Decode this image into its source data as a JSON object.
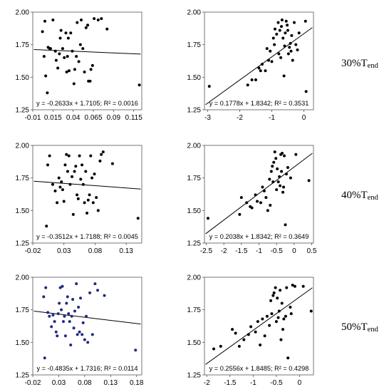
{
  "row_labels": [
    {
      "main": "30%T",
      "sub": "end"
    },
    {
      "main": "40%T",
      "sub": "end"
    },
    {
      "main": "50%T",
      "sub": "end"
    }
  ],
  "chart_data": [
    {
      "type": "scatter",
      "row": 0,
      "col": 0,
      "xlim": [
        -0.01,
        0.125
      ],
      "ylim": [
        1.25,
        2.0
      ],
      "xticks": [
        -0.01,
        0.015,
        0.04,
        0.065,
        0.09,
        0.115
      ],
      "xtick_labels": [
        "-0.01",
        "0.015",
        "0.04",
        "0.065",
        "0.09",
        "0.115"
      ],
      "yticks": [
        1.25,
        1.5,
        1.75,
        2.0
      ],
      "ytick_labels": [
        "1.25",
        "1.50",
        "1.75",
        "2.00"
      ],
      "point_color": "#000000",
      "equation": "y = -0.2633x + 1.7105;  R² = 0.0016",
      "trend": {
        "slope": -0.2633,
        "intercept": 1.7105
      },
      "points": [
        [
          0.002,
          1.85
        ],
        [
          0.004,
          1.66
        ],
        [
          0.006,
          1.51
        ],
        [
          0.008,
          1.38
        ],
        [
          0.005,
          1.93
        ],
        [
          0.009,
          1.73
        ],
        [
          0.011,
          1.72
        ],
        [
          0.012,
          1.72
        ],
        [
          0.015,
          1.94
        ],
        [
          0.018,
          1.7
        ],
        [
          0.019,
          1.63
        ],
        [
          0.021,
          1.57
        ],
        [
          0.023,
          1.68
        ],
        [
          0.024,
          1.8
        ],
        [
          0.025,
          1.86
        ],
        [
          0.027,
          1.72
        ],
        [
          0.029,
          1.65
        ],
        [
          0.031,
          1.84
        ],
        [
          0.032,
          1.54
        ],
        [
          0.033,
          1.66
        ],
        [
          0.034,
          1.8
        ],
        [
          0.035,
          1.55
        ],
        [
          0.037,
          1.84
        ],
        [
          0.039,
          1.7
        ],
        [
          0.041,
          1.45
        ],
        [
          0.042,
          1.56
        ],
        [
          0.044,
          1.66
        ],
        [
          0.045,
          1.92
        ],
        [
          0.047,
          1.62
        ],
        [
          0.049,
          1.75
        ],
        [
          0.05,
          1.94
        ],
        [
          0.052,
          1.72
        ],
        [
          0.054,
          1.54
        ],
        [
          0.056,
          1.88
        ],
        [
          0.058,
          1.9
        ],
        [
          0.059,
          1.47
        ],
        [
          0.061,
          1.47
        ],
        [
          0.062,
          1.56
        ],
        [
          0.064,
          1.59
        ],
        [
          0.066,
          1.95
        ],
        [
          0.071,
          1.94
        ],
        [
          0.075,
          1.95
        ],
        [
          0.082,
          1.87
        ],
        [
          0.122,
          1.44
        ]
      ]
    },
    {
      "type": "scatter",
      "row": 0,
      "col": 1,
      "xlim": [
        -3.1,
        0.3
      ],
      "ylim": [
        1.25,
        2.0
      ],
      "xticks": [
        -3,
        -2,
        -1,
        0
      ],
      "xtick_labels": [
        "-3",
        "-2",
        "-1",
        "0"
      ],
      "yticks": [
        1.25,
        1.5,
        1.75,
        2.0
      ],
      "ytick_labels": [
        "1.25",
        "1.50",
        "1.75",
        "2.00"
      ],
      "point_color": "#000000",
      "equation": "y = 0.1778x + 1.8342;  R² = 0.3531",
      "trend": {
        "slope": 0.1778,
        "intercept": 1.8342
      },
      "points": [
        [
          -2.95,
          1.43
        ],
        [
          -1.75,
          1.44
        ],
        [
          -1.62,
          1.48
        ],
        [
          -1.5,
          1.48
        ],
        [
          -1.4,
          1.57
        ],
        [
          -1.35,
          1.55
        ],
        [
          -1.3,
          1.6
        ],
        [
          -1.2,
          1.55
        ],
        [
          -1.15,
          1.72
        ],
        [
          -1.1,
          1.63
        ],
        [
          -1.05,
          1.7
        ],
        [
          -1.0,
          1.62
        ],
        [
          -0.95,
          1.8
        ],
        [
          -0.92,
          1.75
        ],
        [
          -0.9,
          1.87
        ],
        [
          -0.85,
          1.83
        ],
        [
          -0.8,
          1.92
        ],
        [
          -0.78,
          1.68
        ],
        [
          -0.75,
          1.86
        ],
        [
          -0.72,
          1.65
        ],
        [
          -0.7,
          1.89
        ],
        [
          -0.68,
          1.94
        ],
        [
          -0.65,
          1.8
        ],
        [
          -0.62,
          1.51
        ],
        [
          -0.6,
          1.74
        ],
        [
          -0.58,
          1.84
        ],
        [
          -0.55,
          1.93
        ],
        [
          -0.52,
          1.9
        ],
        [
          -0.5,
          1.86
        ],
        [
          -0.48,
          1.68
        ],
        [
          -0.45,
          1.73
        ],
        [
          -0.42,
          1.76
        ],
        [
          -0.4,
          1.7
        ],
        [
          -0.38,
          1.82
        ],
        [
          -0.35,
          1.63
        ],
        [
          -0.3,
          1.92
        ],
        [
          -0.25,
          1.75
        ],
        [
          -0.2,
          1.71
        ],
        [
          -0.15,
          1.84
        ],
        [
          0.05,
          1.93
        ],
        [
          0.07,
          1.39
        ]
      ]
    },
    {
      "type": "scatter",
      "row": 1,
      "col": 0,
      "xlim": [
        -0.02,
        0.155
      ],
      "ylim": [
        1.25,
        2.0
      ],
      "xticks": [
        -0.02,
        0.03,
        0.08,
        0.13
      ],
      "xtick_labels": [
        "-0.02",
        "0.03",
        "0.08",
        "0.13"
      ],
      "yticks": [
        1.25,
        1.5,
        1.75,
        2.0
      ],
      "ytick_labels": [
        "1.25",
        "1.50",
        "1.75",
        "2.00"
      ],
      "point_color": "#000000",
      "equation": "y = -0.3512x + 1.7188;  R² = 0.0045",
      "trend": {
        "slope": -0.3512,
        "intercept": 1.7188
      },
      "points": [
        [
          0.002,
          1.38
        ],
        [
          0.004,
          1.85
        ],
        [
          0.007,
          1.92
        ],
        [
          0.012,
          1.7
        ],
        [
          0.016,
          1.65
        ],
        [
          0.019,
          1.56
        ],
        [
          0.022,
          1.75
        ],
        [
          0.024,
          1.68
        ],
        [
          0.026,
          1.72
        ],
        [
          0.028,
          1.66
        ],
        [
          0.03,
          1.57
        ],
        [
          0.032,
          1.85
        ],
        [
          0.034,
          1.93
        ],
        [
          0.036,
          1.8
        ],
        [
          0.038,
          1.92
        ],
        [
          0.04,
          1.7
        ],
        [
          0.043,
          1.76
        ],
        [
          0.045,
          1.47
        ],
        [
          0.047,
          1.8
        ],
        [
          0.049,
          1.84
        ],
        [
          0.051,
          1.62
        ],
        [
          0.053,
          1.59
        ],
        [
          0.055,
          1.92
        ],
        [
          0.057,
          1.74
        ],
        [
          0.059,
          1.85
        ],
        [
          0.061,
          1.7
        ],
        [
          0.063,
          1.56
        ],
        [
          0.065,
          1.8
        ],
        [
          0.067,
          1.48
        ],
        [
          0.069,
          1.58
        ],
        [
          0.071,
          1.62
        ],
        [
          0.073,
          1.92
        ],
        [
          0.075,
          1.75
        ],
        [
          0.077,
          1.56
        ],
        [
          0.079,
          1.78
        ],
        [
          0.082,
          1.6
        ],
        [
          0.085,
          1.5
        ],
        [
          0.088,
          1.88
        ],
        [
          0.09,
          1.93
        ],
        [
          0.093,
          1.95
        ],
        [
          0.108,
          1.86
        ],
        [
          0.149,
          1.44
        ]
      ]
    },
    {
      "type": "scatter",
      "row": 1,
      "col": 1,
      "xlim": [
        -2.55,
        0.55
      ],
      "ylim": [
        1.25,
        2.0
      ],
      "xticks": [
        -2.5,
        -2,
        -1.5,
        -1,
        -0.5,
        0,
        0.5
      ],
      "xtick_labels": [
        "-2.5",
        "-2",
        "-1.5",
        "-1",
        "-0.5",
        "0",
        "0.5"
      ],
      "yticks": [
        1.25,
        1.5,
        1.75,
        2.0
      ],
      "ytick_labels": [
        "1.25",
        "1.50",
        "1.75",
        "2.00"
      ],
      "point_color": "#000000",
      "equation": "y = 0.2038x + 1.8342;  R² = 0.3649",
      "trend": {
        "slope": 0.2038,
        "intercept": 1.8342
      },
      "points": [
        [
          -2.45,
          1.44
        ],
        [
          -1.55,
          1.47
        ],
        [
          -1.5,
          1.6
        ],
        [
          -1.35,
          1.56
        ],
        [
          -1.25,
          1.53
        ],
        [
          -1.2,
          1.52
        ],
        [
          -1.1,
          1.62
        ],
        [
          -1.05,
          1.57
        ],
        [
          -0.95,
          1.56
        ],
        [
          -0.9,
          1.68
        ],
        [
          -0.85,
          1.65
        ],
        [
          -0.8,
          1.6
        ],
        [
          -0.75,
          1.5
        ],
        [
          -0.7,
          1.74
        ],
        [
          -0.68,
          1.54
        ],
        [
          -0.65,
          1.8
        ],
        [
          -0.62,
          1.84
        ],
        [
          -0.6,
          1.72
        ],
        [
          -0.58,
          1.87
        ],
        [
          -0.55,
          1.95
        ],
        [
          -0.52,
          1.9
        ],
        [
          -0.5,
          1.66
        ],
        [
          -0.48,
          1.82
        ],
        [
          -0.45,
          1.72
        ],
        [
          -0.42,
          1.76
        ],
        [
          -0.4,
          1.69
        ],
        [
          -0.38,
          1.93
        ],
        [
          -0.36,
          1.8
        ],
        [
          -0.34,
          1.94
        ],
        [
          -0.32,
          1.64
        ],
        [
          -0.3,
          1.68
        ],
        [
          -0.28,
          1.92
        ],
        [
          -0.25,
          1.39
        ],
        [
          -0.22,
          1.78
        ],
        [
          -0.18,
          1.83
        ],
        [
          -0.1,
          1.75
        ],
        [
          0.05,
          1.93
        ],
        [
          0.42,
          1.73
        ]
      ]
    },
    {
      "type": "scatter",
      "row": 2,
      "col": 0,
      "xlim": [
        -0.02,
        0.19
      ],
      "ylim": [
        1.25,
        2.0
      ],
      "xticks": [
        -0.02,
        0.03,
        0.08,
        0.13,
        0.18
      ],
      "xtick_labels": [
        "-0.02",
        "0.03",
        "0.08",
        "0.13",
        "0.18"
      ],
      "yticks": [
        1.25,
        1.5,
        1.75,
        2.0
      ],
      "ytick_labels": [
        "1.25",
        "1.50",
        "1.75",
        "2.00"
      ],
      "point_color": "#1f2a80",
      "equation": "y = -0.4835x + 1.7316;  R² = 0.0114",
      "trend": {
        "slope": -0.4835,
        "intercept": 1.7316
      },
      "points": [
        [
          0.001,
          1.85
        ],
        [
          0.003,
          1.38
        ],
        [
          0.005,
          1.92
        ],
        [
          0.009,
          1.73
        ],
        [
          0.012,
          1.7
        ],
        [
          0.016,
          1.62
        ],
        [
          0.019,
          1.71
        ],
        [
          0.022,
          1.66
        ],
        [
          0.025,
          1.58
        ],
        [
          0.027,
          1.55
        ],
        [
          0.029,
          1.72
        ],
        [
          0.031,
          1.8
        ],
        [
          0.033,
          1.92
        ],
        [
          0.035,
          1.75
        ],
        [
          0.037,
          1.93
        ],
        [
          0.039,
          1.66
        ],
        [
          0.041,
          1.7
        ],
        [
          0.043,
          1.55
        ],
        [
          0.045,
          1.8
        ],
        [
          0.047,
          1.85
        ],
        [
          0.049,
          1.72
        ],
        [
          0.051,
          1.66
        ],
        [
          0.053,
          1.48
        ],
        [
          0.055,
          1.7
        ],
        [
          0.057,
          1.83
        ],
        [
          0.059,
          1.61
        ],
        [
          0.061,
          1.74
        ],
        [
          0.064,
          1.95
        ],
        [
          0.066,
          1.56
        ],
        [
          0.068,
          1.77
        ],
        [
          0.07,
          1.58
        ],
        [
          0.072,
          1.84
        ],
        [
          0.075,
          1.56
        ],
        [
          0.077,
          1.65
        ],
        [
          0.08,
          1.52
        ],
        [
          0.083,
          1.7
        ],
        [
          0.086,
          1.5
        ],
        [
          0.09,
          1.88
        ],
        [
          0.095,
          1.56
        ],
        [
          0.1,
          1.95
        ],
        [
          0.105,
          1.9
        ],
        [
          0.118,
          1.86
        ],
        [
          0.178,
          1.44
        ]
      ]
    },
    {
      "type": "scatter",
      "row": 2,
      "col": 1,
      "xlim": [
        -2.05,
        0.3
      ],
      "ylim": [
        1.25,
        2.0
      ],
      "xticks": [
        -2,
        -1.5,
        -1,
        -0.5,
        0
      ],
      "xtick_labels": [
        "-2",
        "-1.5",
        "-1",
        "-0.5",
        "0"
      ],
      "yticks": [
        1.25,
        1.5,
        1.75,
        2.0
      ],
      "ytick_labels": [
        "1.25",
        "1.50",
        "1.75",
        "2.00"
      ],
      "point_color": "#000000",
      "equation": "y = 0.2556x + 1.8485;  R² = 0.4298",
      "trend": {
        "slope": 0.2556,
        "intercept": 1.8485
      },
      "points": [
        [
          -1.85,
          1.45
        ],
        [
          -1.7,
          1.47
        ],
        [
          -1.45,
          1.6
        ],
        [
          -1.38,
          1.57
        ],
        [
          -1.3,
          1.47
        ],
        [
          -1.2,
          1.52
        ],
        [
          -1.1,
          1.56
        ],
        [
          -1.05,
          1.62
        ],
        [
          -0.95,
          1.58
        ],
        [
          -0.9,
          1.66
        ],
        [
          -0.85,
          1.48
        ],
        [
          -0.8,
          1.68
        ],
        [
          -0.75,
          1.55
        ],
        [
          -0.7,
          1.7
        ],
        [
          -0.65,
          1.63
        ],
        [
          -0.62,
          1.82
        ],
        [
          -0.6,
          1.72
        ],
        [
          -0.57,
          1.86
        ],
        [
          -0.55,
          1.88
        ],
        [
          -0.52,
          1.92
        ],
        [
          -0.5,
          1.66
        ],
        [
          -0.48,
          1.84
        ],
        [
          -0.46,
          1.69
        ],
        [
          -0.44,
          1.74
        ],
        [
          -0.42,
          1.9
        ],
        [
          -0.4,
          1.52
        ],
        [
          -0.38,
          1.8
        ],
        [
          -0.36,
          1.6
        ],
        [
          -0.34,
          1.68
        ],
        [
          -0.3,
          1.7
        ],
        [
          -0.28,
          1.92
        ],
        [
          -0.25,
          1.38
        ],
        [
          -0.2,
          1.77
        ],
        [
          -0.18,
          1.72
        ],
        [
          -0.15,
          1.94
        ],
        [
          -0.1,
          1.93
        ],
        [
          0.08,
          1.93
        ],
        [
          0.25,
          1.74
        ]
      ]
    }
  ]
}
